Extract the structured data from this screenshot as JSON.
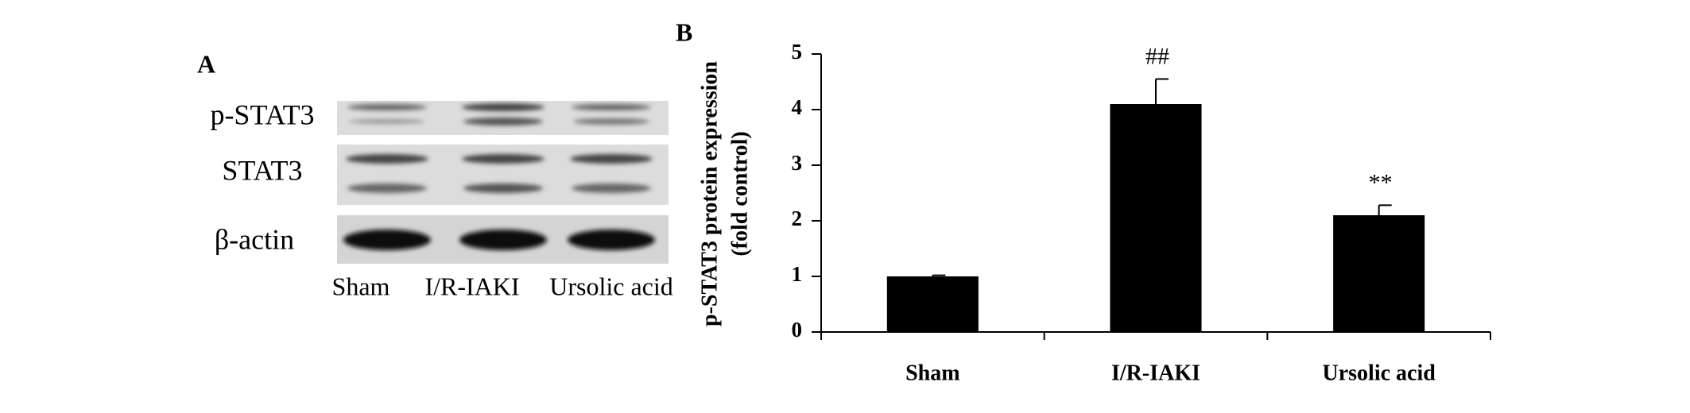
{
  "panel_a": {
    "label": "A",
    "rows": [
      "p-STAT3",
      "STAT3",
      "β-actin"
    ],
    "lanes": [
      "Sham",
      "I/R-IAKI",
      "Ursolic acid"
    ]
  },
  "chart_data": {
    "type": "bar",
    "panel_label": "B",
    "y_label": [
      "p-STAT3 protein expression",
      "(fold control)"
    ],
    "categories": [
      "Sham",
      "I/R-IAKI",
      "Ursolic acid"
    ],
    "values": [
      1.0,
      4.1,
      2.1
    ],
    "errors": [
      0.02,
      0.45,
      0.18
    ],
    "annotations": [
      null,
      "##",
      "**"
    ],
    "color": "#000000",
    "ylim": [
      0,
      5
    ],
    "yticks": [
      0,
      1,
      2,
      3,
      4,
      5
    ],
    "grid": false
  }
}
